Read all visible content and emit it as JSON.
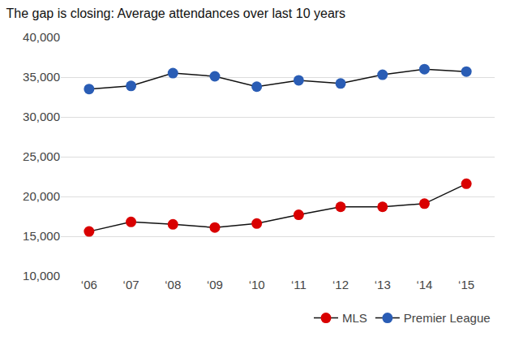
{
  "chart_data": {
    "type": "line",
    "title": "The gap is closing: Average attendances over last 10 years",
    "categories": [
      "‘06",
      "‘07",
      "‘08",
      "‘09",
      "‘10",
      "‘11",
      "‘12",
      "‘13",
      "‘14",
      "‘15"
    ],
    "series": [
      {
        "name": "MLS",
        "color": "#d90000",
        "values": [
          15600,
          16800,
          16500,
          16100,
          16600,
          17700,
          18700,
          18700,
          19100,
          21600
        ]
      },
      {
        "name": "Premier League",
        "color": "#2a5db5",
        "values": [
          33500,
          33900,
          35500,
          35100,
          33800,
          34600,
          34200,
          35300,
          36000,
          35700
        ]
      }
    ],
    "ylim": [
      10000,
      40000
    ],
    "yticks": [
      {
        "value": 10000,
        "label": "10,000"
      },
      {
        "value": 15000,
        "label": "15,000"
      },
      {
        "value": 20000,
        "label": "20,000"
      },
      {
        "value": 25000,
        "label": "25,000"
      },
      {
        "value": 30000,
        "label": "30,000"
      },
      {
        "value": 35000,
        "label": "35,000"
      },
      {
        "value": 40000,
        "label": "40,000"
      }
    ],
    "grid": true,
    "legend": "bottom right",
    "marker": "circle",
    "line_style": "solid"
  }
}
